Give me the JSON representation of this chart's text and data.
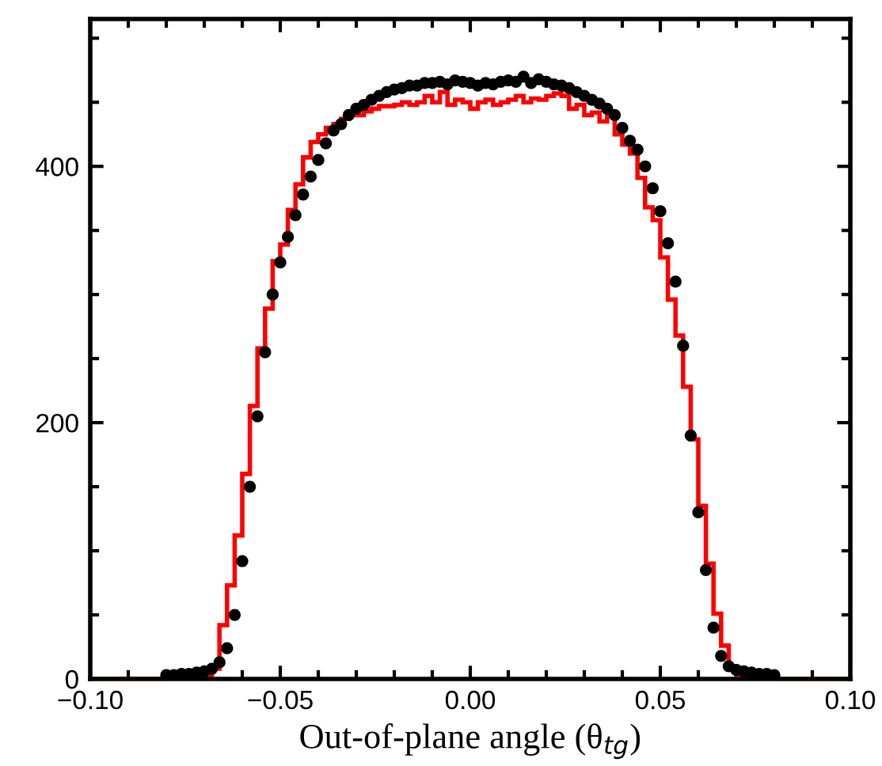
{
  "chart_data": {
    "type": "histogram",
    "xlabel": "Out-of-plane angle (θ$_{tg}$)",
    "xlim": [
      -0.1,
      0.1
    ],
    "xticks": [
      {
        "value": -0.1,
        "label": "−0.10"
      },
      {
        "value": -0.09,
        "label": null
      },
      {
        "value": -0.08,
        "label": null
      },
      {
        "value": -0.07,
        "label": null
      },
      {
        "value": -0.06,
        "label": null
      },
      {
        "value": -0.05,
        "label": "−0.05"
      },
      {
        "value": -0.04,
        "label": null
      },
      {
        "value": -0.03,
        "label": null
      },
      {
        "value": -0.02,
        "label": null
      },
      {
        "value": -0.01,
        "label": null
      },
      {
        "value": 0,
        "label": "0.00"
      },
      {
        "value": 0.01,
        "label": null
      },
      {
        "value": 0.02,
        "label": null
      },
      {
        "value": 0.03,
        "label": null
      },
      {
        "value": 0.04,
        "label": null
      },
      {
        "value": 0.05,
        "label": "0.05"
      },
      {
        "value": 0.06,
        "label": null
      },
      {
        "value": 0.07,
        "label": null
      },
      {
        "value": 0.08,
        "label": null
      },
      {
        "value": 0.09,
        "label": null
      },
      {
        "value": 0.1,
        "label": "0.10"
      }
    ],
    "ylim": [
      0,
      515
    ],
    "yticks": [
      0,
      {
        "value": 50,
        "label": null
      },
      {
        "value": 100,
        "label": null
      },
      {
        "value": 150,
        "label": null
      },
      200,
      {
        "value": 250,
        "label": null
      },
      {
        "value": 300,
        "label": null
      },
      {
        "value": 350,
        "label": null
      },
      400,
      {
        "value": 450,
        "label": null
      },
      {
        "value": 500,
        "label": null
      }
    ],
    "grid": false,
    "legend": false,
    "series": [
      {
        "color": "#ff0000",
        "bins": [
          -0.1,
          -0.07,
          -0.068,
          -0.066,
          -0.064,
          -0.062,
          -0.06,
          -0.058,
          -0.056,
          -0.054,
          -0.052,
          -0.05,
          -0.048,
          -0.046,
          -0.044,
          -0.042,
          -0.04,
          -0.038,
          -0.036,
          -0.034,
          -0.032,
          -0.03,
          -0.028,
          -0.026,
          -0.024,
          -0.022,
          -0.02,
          -0.018,
          -0.016,
          -0.014,
          -0.012,
          -0.01,
          -0.008,
          -0.006,
          -0.004,
          -0.002,
          0,
          0.002,
          0.004,
          0.006,
          0.008,
          0.01,
          0.012,
          0.014,
          0.016,
          0.018,
          0.02,
          0.022,
          0.024,
          0.026,
          0.028,
          0.03,
          0.032,
          0.034,
          0.036,
          0.038,
          0.04,
          0.042,
          0.044,
          0.046,
          0.048,
          0.05,
          0.052,
          0.054,
          0.056,
          0.058,
          0.06,
          0.062,
          0.064,
          0.066,
          0.068,
          0.07,
          0.072,
          0.1
        ],
        "values": [
          0,
          3,
          8,
          42,
          73,
          112,
          160,
          213,
          258,
          289,
          326,
          339,
          366,
          386,
          407,
          419,
          425,
          430,
          433,
          437,
          440,
          440,
          443,
          445,
          447,
          447,
          448,
          450,
          448,
          450,
          455,
          450,
          458,
          448,
          452,
          450,
          445,
          450,
          452,
          448,
          450,
          452,
          455,
          450,
          453,
          452,
          455,
          457,
          455,
          445,
          448,
          440,
          442,
          435,
          440,
          425,
          417,
          410,
          391,
          368,
          358,
          329,
          296,
          268,
          228,
          187,
          135,
          90,
          51,
          26,
          10,
          3,
          0
        ]
      },
      {
        "type": "scatter",
        "color": "#000000",
        "marker": "circle",
        "x": [
          -0.08,
          -0.078,
          -0.076,
          -0.074,
          -0.072,
          -0.07,
          -0.068,
          -0.066,
          -0.064,
          -0.062,
          -0.06,
          -0.058,
          -0.056,
          -0.054,
          -0.052,
          -0.05,
          -0.048,
          -0.046,
          -0.044,
          -0.042,
          -0.04,
          -0.038,
          -0.036,
          -0.034,
          -0.032,
          -0.03,
          -0.028,
          -0.026,
          -0.024,
          -0.022,
          -0.02,
          -0.018,
          -0.016,
          -0.014,
          -0.012,
          -0.01,
          -0.008,
          -0.006,
          -0.004,
          -0.002,
          0,
          0.002,
          0.004,
          0.006,
          0.008,
          0.01,
          0.012,
          0.014,
          0.016,
          0.018,
          0.02,
          0.022,
          0.024,
          0.026,
          0.028,
          0.03,
          0.032,
          0.034,
          0.036,
          0.038,
          0.04,
          0.042,
          0.044,
          0.046,
          0.048,
          0.05,
          0.052,
          0.054,
          0.056,
          0.058,
          0.06,
          0.062,
          0.064,
          0.066,
          0.068,
          0.07,
          0.072,
          0.074,
          0.076,
          0.078,
          0.08
        ],
        "values": [
          3,
          3,
          4,
          4,
          5,
          6,
          8,
          13,
          24,
          50,
          92,
          150,
          205,
          255,
          300,
          325,
          345,
          362,
          378,
          392,
          405,
          418,
          428,
          433,
          440,
          445,
          448,
          452,
          455,
          458,
          460,
          461,
          463,
          463,
          465,
          465,
          466,
          464,
          467,
          466,
          465,
          463,
          465,
          464,
          466,
          467,
          466,
          470,
          465,
          468,
          466,
          464,
          463,
          461,
          458,
          455,
          452,
          449,
          445,
          440,
          430,
          420,
          413,
          400,
          383,
          365,
          340,
          310,
          260,
          190,
          130,
          85,
          40,
          18,
          10,
          7,
          6,
          5,
          4,
          4,
          3
        ]
      }
    ]
  }
}
